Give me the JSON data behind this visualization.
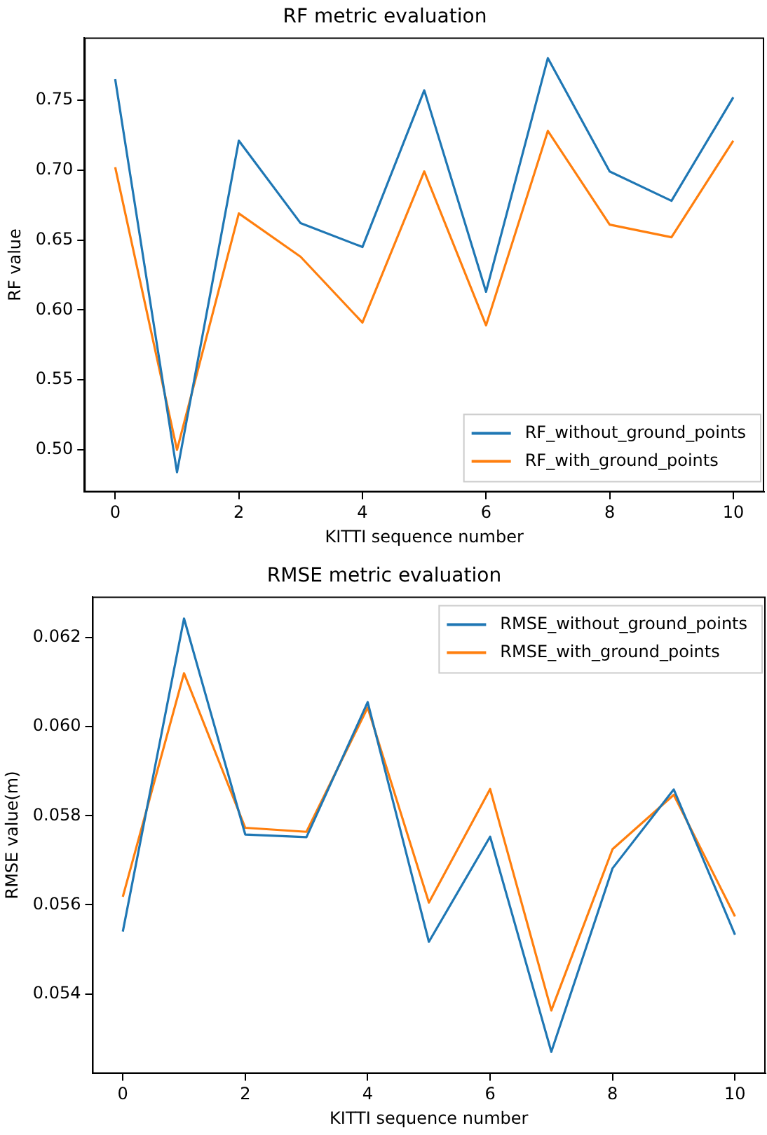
{
  "chart_data": [
    {
      "type": "line",
      "title": "RF metric evaluation",
      "xlabel": "KITTI sequence number",
      "ylabel": "RF value",
      "x": [
        0,
        1,
        2,
        3,
        4,
        5,
        6,
        7,
        8,
        9,
        10
      ],
      "xlim": [
        -0.5,
        10.5
      ],
      "xticks": [
        0,
        2,
        4,
        6,
        8,
        10
      ],
      "ylim": [
        0.4698,
        0.7947
      ],
      "yticks": [
        {
          "value": 0.5,
          "label": "0.50"
        },
        0.55,
        {
          "value": 0.6,
          "label": "0.60"
        },
        0.65,
        {
          "value": 0.7,
          "label": "0.70"
        },
        0.75
      ],
      "grid": false,
      "legend": "bottom right",
      "marker": "none",
      "line_style": "solid",
      "series": [
        {
          "name": "RF_without_ground_points",
          "color": "#1f77b4",
          "values": [
            0.765,
            0.484,
            0.721,
            0.662,
            0.645,
            0.757,
            0.613,
            0.78,
            0.699,
            0.678,
            0.752
          ]
        },
        {
          "name": "RF_with_ground_points",
          "color": "#ff7f0e",
          "values": [
            0.702,
            0.5,
            0.669,
            0.638,
            0.591,
            0.699,
            0.589,
            0.728,
            0.661,
            0.652,
            0.721
          ]
        }
      ]
    },
    {
      "type": "line",
      "title": "RMSE metric evaluation",
      "xlabel": "KITTI sequence number",
      "ylabel": "RMSE value(m)",
      "x": [
        0,
        1,
        2,
        3,
        4,
        5,
        6,
        7,
        8,
        9,
        10
      ],
      "xlim": [
        -0.5,
        10.5
      ],
      "xticks": [
        0,
        2,
        4,
        6,
        8,
        10
      ],
      "ylim": [
        0.05221,
        0.06292
      ],
      "yticks": [
        {
          "value": 0.054,
          "label": "0.054"
        },
        {
          "value": 0.056,
          "label": "0.056"
        },
        {
          "value": 0.058,
          "label": "0.058"
        },
        {
          "value": 0.06,
          "label": "0.060"
        },
        {
          "value": 0.062,
          "label": "0.062"
        }
      ],
      "grid": false,
      "legend": "top right",
      "marker": "none",
      "line_style": "solid",
      "series": [
        {
          "name": "RMSE_without_ground_points",
          "color": "#1f77b4",
          "values": [
            0.0554,
            0.06243,
            0.05758,
            0.05752,
            0.06055,
            0.05517,
            0.05753,
            0.0527,
            0.05682,
            0.05859,
            0.05533
          ]
        },
        {
          "name": "RMSE_with_ground_points",
          "color": "#ff7f0e",
          "values": [
            0.05618,
            0.0612,
            0.05773,
            0.05764,
            0.06043,
            0.05605,
            0.0586,
            0.05363,
            0.05725,
            0.05847,
            0.05574
          ]
        }
      ]
    }
  ]
}
